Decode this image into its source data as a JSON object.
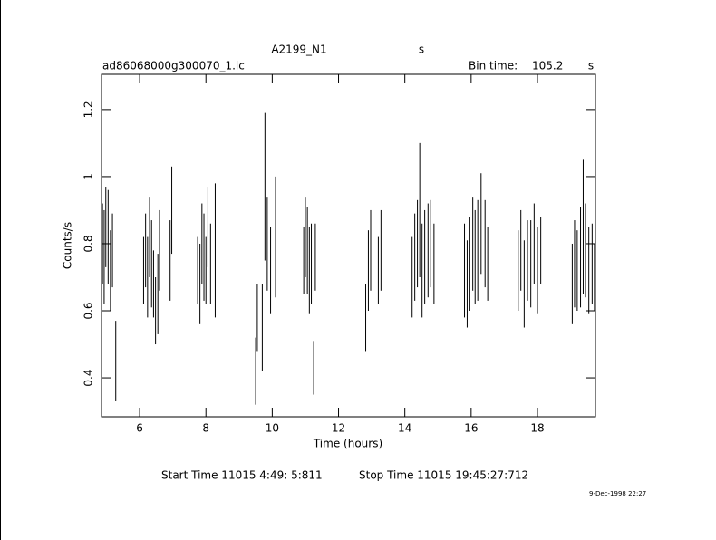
{
  "chart_data": {
    "type": "errorbar",
    "title": "A2199_N1",
    "title_unit": "s",
    "subtitle": "ad86068000g300070_1.lc",
    "bin_label": "Bin time:",
    "bin_value": "105.2",
    "bin_unit": "s",
    "xlabel": "Time (hours)",
    "ylabel": "Counts/s",
    "start_time": "Start Time 11015  4:49: 5:811",
    "stop_time": "Stop Time 11015 19:45:27:712",
    "timestamp": "9-Dec-1998 22:27",
    "color": "#000000",
    "xlim": [
      4.85,
      19.75
    ],
    "xticks": [
      6,
      8,
      10,
      12,
      14,
      16,
      18
    ],
    "ylim": [
      0.284,
      1.305
    ],
    "yticks": [
      0.4,
      0.6,
      0.8,
      1,
      1.2
    ],
    "x": [
      4.88,
      4.93,
      4.98,
      5.05,
      5.12,
      5.18,
      5.28,
      6.12,
      6.18,
      6.24,
      6.3,
      6.36,
      6.42,
      6.48,
      6.55,
      6.6,
      6.92,
      6.97,
      7.75,
      7.82,
      7.88,
      7.94,
      8,
      8.06,
      8.14,
      8.28,
      9.5,
      9.55,
      9.7,
      9.78,
      9.85,
      9.95,
      10.1,
      10.95,
      11,
      11.06,
      11.12,
      11.18,
      11.25,
      11.3,
      12.82,
      12.9,
      12.97,
      13.2,
      13.28,
      14.22,
      14.3,
      14.38,
      14.45,
      14.52,
      14.6,
      14.7,
      14.78,
      14.88,
      15.8,
      15.88,
      15.96,
      16.05,
      16.12,
      16.2,
      16.3,
      16.42,
      16.5,
      17.42,
      17.5,
      17.6,
      17.7,
      17.8,
      17.9,
      18,
      18.1,
      19.05,
      19.12,
      19.2,
      19.3,
      19.38,
      19.45,
      19.55,
      19.65,
      19.72
    ],
    "values": [
      0.8,
      0.76,
      0.85,
      0.82,
      0.72,
      0.78,
      0.45,
      0.72,
      0.78,
      0.7,
      0.82,
      0.74,
      0.68,
      0.6,
      0.65,
      0.78,
      0.75,
      0.9,
      0.72,
      0.68,
      0.8,
      0.76,
      0.72,
      0.85,
      0.74,
      0.78,
      0.42,
      0.58,
      0.55,
      0.97,
      0.8,
      0.72,
      0.82,
      0.75,
      0.82,
      0.78,
      0.72,
      0.74,
      0.43,
      0.76,
      0.58,
      0.72,
      0.78,
      0.72,
      0.78,
      0.7,
      0.76,
      0.8,
      0.9,
      0.72,
      0.76,
      0.78,
      0.8,
      0.74,
      0.72,
      0.68,
      0.74,
      0.8,
      0.76,
      0.78,
      0.86,
      0.8,
      0.74,
      0.72,
      0.78,
      0.68,
      0.75,
      0.74,
      0.8,
      0.72,
      0.78,
      0.68,
      0.74,
      0.72,
      0.76,
      0.85,
      0.78,
      0.72,
      0.74,
      0.7
    ],
    "errors": [
      0.12,
      0.14,
      0.12,
      0.14,
      0.12,
      0.11,
      0.12,
      0.1,
      0.11,
      0.12,
      0.12,
      0.13,
      0.1,
      0.1,
      0.12,
      0.12,
      0.12,
      0.13,
      0.1,
      0.12,
      0.12,
      0.13,
      0.1,
      0.12,
      0.12,
      0.2,
      0.1,
      0.1,
      0.13,
      0.22,
      0.14,
      0.13,
      0.18,
      0.1,
      0.12,
      0.13,
      0.13,
      0.12,
      0.08,
      0.1,
      0.1,
      0.12,
      0.12,
      0.1,
      0.12,
      0.12,
      0.13,
      0.13,
      0.2,
      0.14,
      0.14,
      0.14,
      0.13,
      0.12,
      0.14,
      0.13,
      0.14,
      0.14,
      0.14,
      0.15,
      0.15,
      0.13,
      0.11,
      0.12,
      0.12,
      0.13,
      0.12,
      0.13,
      0.12,
      0.13,
      0.1,
      0.12,
      0.13,
      0.12,
      0.15,
      0.2,
      0.14,
      0.13,
      0.12,
      0.1
    ]
  }
}
